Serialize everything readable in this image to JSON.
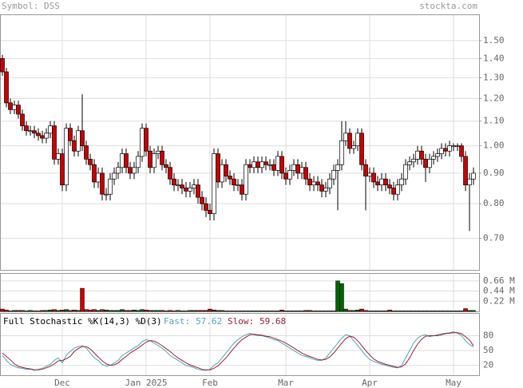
{
  "header": {
    "symbol": "Symbol: DSS",
    "site": "stockta.com"
  },
  "chart_data": [
    {
      "type": "candlestick",
      "open": [
        1.4,
        1.33,
        1.18,
        1.15,
        1.17,
        1.13,
        1.08,
        1.06,
        1.06,
        1.05,
        1.04,
        1.03,
        1.05,
        1.08,
        0.95,
        0.97,
        0.86,
        1.07,
        1.02,
        0.98,
        1.06,
        1.0,
        0.95,
        0.93,
        0.87,
        0.9,
        0.83,
        0.83,
        0.88,
        0.9,
        0.92,
        0.97,
        0.92,
        0.9,
        0.92,
        0.96,
        1.07,
        0.98,
        0.92,
        0.97,
        0.98,
        0.93,
        0.92,
        0.88,
        0.86,
        0.86,
        0.85,
        0.84,
        0.85,
        0.86,
        0.82,
        0.8,
        0.78,
        0.77,
        0.97,
        0.87,
        0.93,
        0.89,
        0.88,
        0.86,
        0.86,
        0.83,
        0.93,
        0.92,
        0.94,
        0.92,
        0.94,
        0.93,
        0.93,
        0.91,
        0.96,
        0.9,
        0.88,
        0.91,
        0.93,
        0.9,
        0.92,
        0.88,
        0.86,
        0.87,
        0.86,
        0.84,
        0.85,
        0.88,
        0.91,
        0.93,
        1.02,
        1.05,
        0.99,
        1.0,
        1.05,
        0.93,
        0.89,
        0.9,
        0.87,
        0.86,
        0.88,
        0.86,
        0.85,
        0.83,
        0.86,
        0.88,
        0.93,
        0.94,
        0.95,
        0.98,
        0.95,
        0.92,
        0.95,
        0.96,
        0.97,
        0.99,
        0.98,
        1.0,
        1.0,
        1.0,
        0.96,
        0.86,
        0.88
      ],
      "high": [
        1.42,
        1.35,
        1.2,
        1.19,
        1.19,
        1.15,
        1.1,
        1.08,
        1.08,
        1.07,
        1.06,
        1.07,
        1.1,
        1.1,
        0.99,
        0.99,
        1.09,
        1.09,
        1.04,
        1.08,
        1.22,
        1.02,
        0.97,
        0.95,
        0.92,
        0.92,
        0.85,
        0.9,
        0.92,
        0.94,
        0.99,
        0.99,
        0.94,
        0.94,
        0.98,
        1.09,
        1.09,
        1.0,
        0.99,
        1.0,
        1.0,
        0.95,
        0.94,
        0.9,
        0.88,
        0.88,
        0.87,
        0.87,
        0.88,
        0.88,
        0.84,
        0.82,
        0.8,
        0.99,
        0.99,
        0.95,
        0.95,
        0.91,
        0.9,
        0.88,
        0.88,
        0.95,
        0.95,
        0.96,
        0.96,
        0.96,
        0.96,
        0.95,
        0.95,
        0.98,
        0.98,
        0.92,
        0.93,
        0.95,
        0.95,
        0.94,
        0.94,
        0.9,
        0.89,
        0.89,
        0.88,
        0.87,
        0.9,
        0.93,
        0.95,
        1.1,
        1.1,
        1.07,
        1.02,
        1.07,
        1.07,
        0.95,
        0.92,
        0.92,
        0.89,
        0.9,
        0.9,
        0.88,
        0.87,
        0.88,
        0.9,
        0.95,
        0.96,
        0.97,
        1.0,
        1.0,
        0.97,
        0.97,
        0.98,
        0.99,
        1.01,
        1.01,
        1.02,
        1.01,
        1.01,
        1.01,
        0.98,
        0.9,
        0.92
      ],
      "low": [
        1.31,
        1.16,
        1.13,
        1.13,
        1.11,
        1.06,
        1.04,
        1.04,
        1.03,
        1.02,
        1.01,
        1.01,
        1.03,
        0.93,
        0.93,
        0.84,
        0.84,
        1.0,
        0.96,
        0.96,
        0.98,
        0.93,
        0.91,
        0.85,
        0.85,
        0.81,
        0.81,
        0.81,
        0.86,
        0.88,
        0.9,
        0.9,
        0.88,
        0.88,
        0.9,
        0.94,
        0.96,
        0.9,
        0.9,
        0.95,
        0.91,
        0.9,
        0.86,
        0.84,
        0.84,
        0.83,
        0.82,
        0.82,
        0.83,
        0.8,
        0.78,
        0.76,
        0.75,
        0.75,
        0.85,
        0.85,
        0.87,
        0.86,
        0.84,
        0.84,
        0.81,
        0.81,
        0.9,
        0.9,
        0.9,
        0.9,
        0.91,
        0.91,
        0.89,
        0.89,
        0.88,
        0.86,
        0.86,
        0.89,
        0.88,
        0.88,
        0.86,
        0.84,
        0.84,
        0.84,
        0.82,
        0.82,
        0.83,
        0.86,
        0.78,
        0.91,
        1.0,
        0.97,
        0.97,
        0.98,
        0.91,
        0.78,
        0.87,
        0.85,
        0.84,
        0.84,
        0.84,
        0.83,
        0.81,
        0.81,
        0.84,
        0.86,
        0.91,
        0.92,
        0.93,
        0.93,
        0.87,
        0.9,
        0.93,
        0.94,
        0.95,
        0.96,
        0.96,
        0.98,
        0.98,
        0.94,
        0.84,
        0.72,
        0.86
      ],
      "close": [
        1.33,
        1.18,
        1.15,
        1.17,
        1.13,
        1.08,
        1.06,
        1.06,
        1.05,
        1.04,
        1.03,
        1.05,
        1.08,
        0.95,
        0.97,
        0.86,
        1.07,
        1.02,
        0.98,
        1.06,
        1.0,
        0.95,
        0.93,
        0.87,
        0.9,
        0.83,
        0.83,
        0.88,
        0.9,
        0.92,
        0.97,
        0.92,
        0.9,
        0.92,
        0.96,
        1.07,
        0.98,
        0.92,
        0.97,
        0.98,
        0.93,
        0.92,
        0.88,
        0.86,
        0.86,
        0.85,
        0.84,
        0.85,
        0.86,
        0.82,
        0.8,
        0.78,
        0.77,
        0.97,
        0.87,
        0.93,
        0.89,
        0.88,
        0.86,
        0.86,
        0.83,
        0.93,
        0.92,
        0.94,
        0.92,
        0.94,
        0.93,
        0.93,
        0.91,
        0.96,
        0.9,
        0.88,
        0.91,
        0.93,
        0.9,
        0.92,
        0.88,
        0.86,
        0.87,
        0.86,
        0.84,
        0.85,
        0.88,
        0.91,
        0.93,
        1.02,
        1.05,
        0.99,
        1.0,
        1.05,
        0.93,
        0.89,
        0.9,
        0.87,
        0.86,
        0.88,
        0.86,
        0.85,
        0.83,
        0.86,
        0.88,
        0.93,
        0.94,
        0.95,
        0.98,
        0.95,
        0.92,
        0.95,
        0.96,
        0.97,
        0.99,
        0.98,
        1.0,
        1.0,
        1.0,
        0.96,
        0.86,
        0.88,
        0.9
      ],
      "up_color": "#ffffff",
      "down_color": "#cc0000",
      "ylim": [
        0.62,
        1.66
      ],
      "log_scale": true,
      "grid": true,
      "yticks": [
        {
          "value": 0.7,
          "label": "0.70"
        },
        {
          "value": 0.8,
          "label": "0.80"
        },
        {
          "value": 0.9,
          "label": "0.90"
        },
        {
          "value": 1.0,
          "label": "1.00"
        },
        {
          "value": 1.1,
          "label": "1.10"
        },
        {
          "value": 1.2,
          "label": "1.20"
        },
        {
          "value": 1.3,
          "label": "1.30"
        },
        {
          "value": 1.4,
          "label": "1.40"
        },
        {
          "value": 1.5,
          "label": "1.50"
        }
      ],
      "xticks": [
        {
          "value": 15,
          "label": "Dec"
        },
        {
          "value": 36,
          "label": "Jan 2025"
        },
        {
          "value": 52,
          "label": "Feb"
        },
        {
          "value": 71,
          "label": "Mar"
        },
        {
          "value": 92,
          "label": "Apr"
        },
        {
          "value": 113,
          "label": "May"
        }
      ]
    },
    {
      "type": "bar",
      "values": [
        0.05,
        0.03,
        0.01,
        0.02,
        0.02,
        0.02,
        0.01,
        0.02,
        0.01,
        0.01,
        0.02,
        0.02,
        0.03,
        0.04,
        0.02,
        0.03,
        0.04,
        0.02,
        0.03,
        0.02,
        0.5,
        0.04,
        0.03,
        0.04,
        0.02,
        0.04,
        0.03,
        0.02,
        0.02,
        0.02,
        0.04,
        0.02,
        0.02,
        0.03,
        0.02,
        0.04,
        0.03,
        0.02,
        0.02,
        0.02,
        0.02,
        0.01,
        0.02,
        0.01,
        0.02,
        0.01,
        0.01,
        0.02,
        0.02,
        0.02,
        0.02,
        0.02,
        0.05,
        0.03,
        0.02,
        0.02,
        0.01,
        0.01,
        0.01,
        0.01,
        0.01,
        0.01,
        0.01,
        0.01,
        0.01,
        0.01,
        0.01,
        0.01,
        0.01,
        0.01,
        0.03,
        0.01,
        0.01,
        0.01,
        0.01,
        0.01,
        0.02,
        0.02,
        0.01,
        0.01,
        0.01,
        0.01,
        0.01,
        0.01,
        0.66,
        0.6,
        0.05,
        0.02,
        0.02,
        0.03,
        0.05,
        0.02,
        0.01,
        0.01,
        0.01,
        0.01,
        0.01,
        0.03,
        0.01,
        0.01,
        0.01,
        0.01,
        0.01,
        0.01,
        0.01,
        0.01,
        0.01,
        0.01,
        0.01,
        0.01,
        0.01,
        0.01,
        0.01,
        0.01,
        0.01,
        0.01,
        0.06,
        0.02,
        0.02
      ],
      "up_color": "#006600",
      "down_color": "#cc0000",
      "ylim": [
        0,
        0.83
      ],
      "yticks": [
        {
          "value": 0.22,
          "label": "0.22 M"
        },
        {
          "value": 0.44,
          "label": "0.44 M"
        },
        {
          "value": 0.66,
          "label": "0.66 M"
        }
      ]
    },
    {
      "type": "line",
      "title": "Full Stochastic %K(14,3) %D(3)",
      "series": [
        {
          "name": "Fast:",
          "color": "#4fa6b5",
          "values": [
            40,
            30,
            22,
            18,
            15,
            14,
            12,
            12,
            10,
            12,
            14,
            18,
            22,
            30,
            35,
            25,
            40,
            48,
            55,
            58,
            60,
            55,
            45,
            35,
            30,
            22,
            18,
            20,
            25,
            30,
            40,
            45,
            50,
            55,
            60,
            68,
            72,
            70,
            65,
            60,
            55,
            48,
            40,
            35,
            30,
            25,
            20,
            18,
            15,
            12,
            10,
            10,
            12,
            20,
            25,
            35,
            45,
            55,
            65,
            72,
            78,
            82,
            85,
            82,
            80,
            80,
            78,
            75,
            72,
            70,
            65,
            60,
            55,
            50,
            45,
            40,
            38,
            35,
            32,
            30,
            30,
            35,
            45,
            55,
            65,
            75,
            82,
            80,
            70,
            60,
            50,
            40,
            32,
            28,
            25,
            22,
            20,
            18,
            16,
            15,
            20,
            35,
            50,
            65,
            75,
            80,
            82,
            78,
            80,
            82,
            84,
            85,
            86,
            88,
            85,
            80,
            70,
            62,
            57.62
          ]
        },
        {
          "name": "Slow:",
          "color": "#9a1f35",
          "values": [
            45,
            38,
            31,
            23,
            18,
            16,
            14,
            13,
            11,
            11,
            12,
            15,
            18,
            23,
            29,
            30,
            33,
            38,
            48,
            54,
            58,
            58,
            53,
            45,
            37,
            29,
            23,
            20,
            21,
            25,
            32,
            38,
            45,
            50,
            55,
            61,
            67,
            70,
            69,
            65,
            60,
            54,
            48,
            41,
            35,
            30,
            25,
            21,
            18,
            15,
            12,
            11,
            11,
            14,
            19,
            27,
            35,
            45,
            55,
            64,
            72,
            77,
            82,
            83,
            82,
            81,
            79,
            78,
            75,
            72,
            69,
            65,
            60,
            55,
            50,
            45,
            41,
            38,
            35,
            32,
            31,
            32,
            37,
            45,
            55,
            65,
            74,
            79,
            77,
            70,
            60,
            50,
            41,
            33,
            28,
            25,
            22,
            20,
            18,
            16,
            17,
            23,
            35,
            50,
            63,
            73,
            79,
            80,
            80,
            80,
            82,
            84,
            85,
            86,
            86,
            84,
            78,
            71,
            59.68
          ]
        }
      ],
      "ylim": [
        0,
        126
      ],
      "yticks": [
        20,
        50,
        80
      ]
    }
  ]
}
